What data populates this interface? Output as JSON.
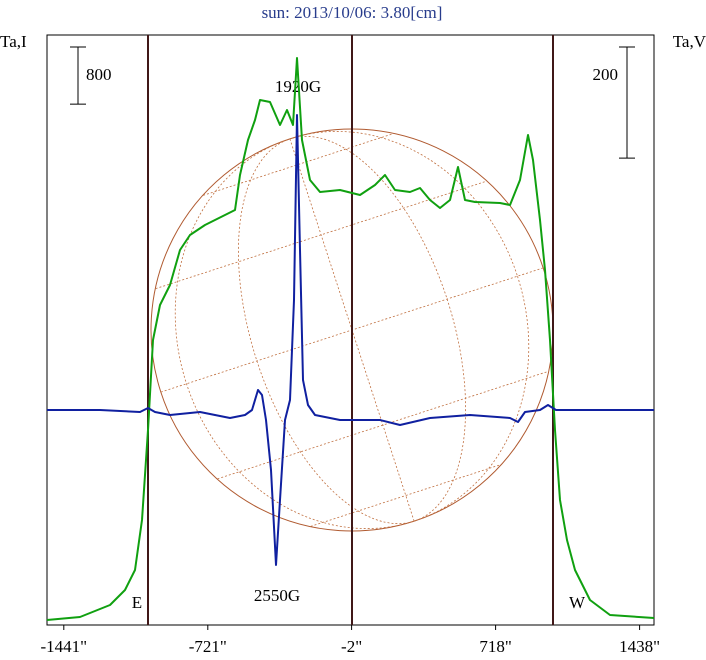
{
  "chart_data": {
    "type": "line",
    "title": "sun: 2013/10/06: 3.80[cm]",
    "xlim": [
      -1525,
      1510
    ],
    "xticks": [
      {
        "value": -1441,
        "label": "-1441\""
      },
      {
        "value": -721,
        "label": "-721\""
      },
      {
        "value": -2,
        "label": "-2\""
      },
      {
        "value": 718,
        "label": "718\""
      },
      {
        "value": 1438,
        "label": "1438\""
      }
    ],
    "ylim": [
      -70,
      8190
    ],
    "y2lim": [
      -387,
      675
    ],
    "y_scale_bar": 800,
    "y2_scale_bar": 200,
    "annotations": [
      "1920G",
      "2550G",
      "E",
      "W"
    ],
    "series": [
      {
        "name": "Ta,I",
        "color": "#10a010",
        "x": [
          -1525,
          -1360,
          -1210,
          -1135,
          -1085,
          -1050,
          -1020,
          -995,
          -960,
          -910,
          -860,
          -810,
          -735,
          -635,
          -585,
          -560,
          -520,
          -485,
          -460,
          -410,
          -360,
          -325,
          -295,
          -275,
          -250,
          -210,
          -160,
          -60,
          40,
          115,
          165,
          215,
          290,
          340,
          390,
          440,
          490,
          530,
          565,
          615,
          740,
          790,
          840,
          880,
          905,
          940,
          965,
          990,
          1015,
          1040,
          1075,
          1115,
          1190,
          1290,
          1510
        ],
        "values": [
          0,
          42,
          210,
          420,
          700,
          1400,
          2660,
          3920,
          4410,
          4690,
          5180,
          5390,
          5530,
          5670,
          5740,
          6230,
          6720,
          7000,
          7280,
          7252,
          6930,
          7140,
          6930,
          7868,
          6720,
          6160,
          5992,
          6020,
          5950,
          6090,
          6230,
          6020,
          5992,
          6048,
          5880,
          5768,
          5880,
          6342,
          5880,
          5852,
          5838,
          5810,
          6160,
          6790,
          6440,
          5600,
          4900,
          3920,
          2660,
          1680,
          1120,
          700,
          280,
          70,
          28
        ]
      },
      {
        "name": "Ta,V",
        "color": "#1020a0",
        "axis": "y2",
        "x": [
          -1525,
          -1260,
          -1060,
          -1020,
          -985,
          -910,
          -760,
          -610,
          -535,
          -500,
          -470,
          -450,
          -430,
          -405,
          -380,
          -360,
          -335,
          -310,
          -290,
          -275,
          -260,
          -245,
          -220,
          -185,
          -60,
          140,
          240,
          390,
          590,
          790,
          830,
          865,
          940,
          980,
          1020,
          1240,
          1510
        ],
        "values": [
          0,
          0,
          -3.6,
          3.6,
          -3.6,
          -9,
          -3.6,
          -14.4,
          -9,
          0,
          36,
          27,
          -18,
          -108,
          -279,
          -162,
          -18,
          18,
          198,
          531,
          288,
          54,
          9,
          -9,
          -18,
          -18,
          -27,
          -14.4,
          -9,
          -14.4,
          -21.6,
          -3.6,
          0,
          9,
          0,
          0,
          0
        ]
      }
    ]
  }
}
